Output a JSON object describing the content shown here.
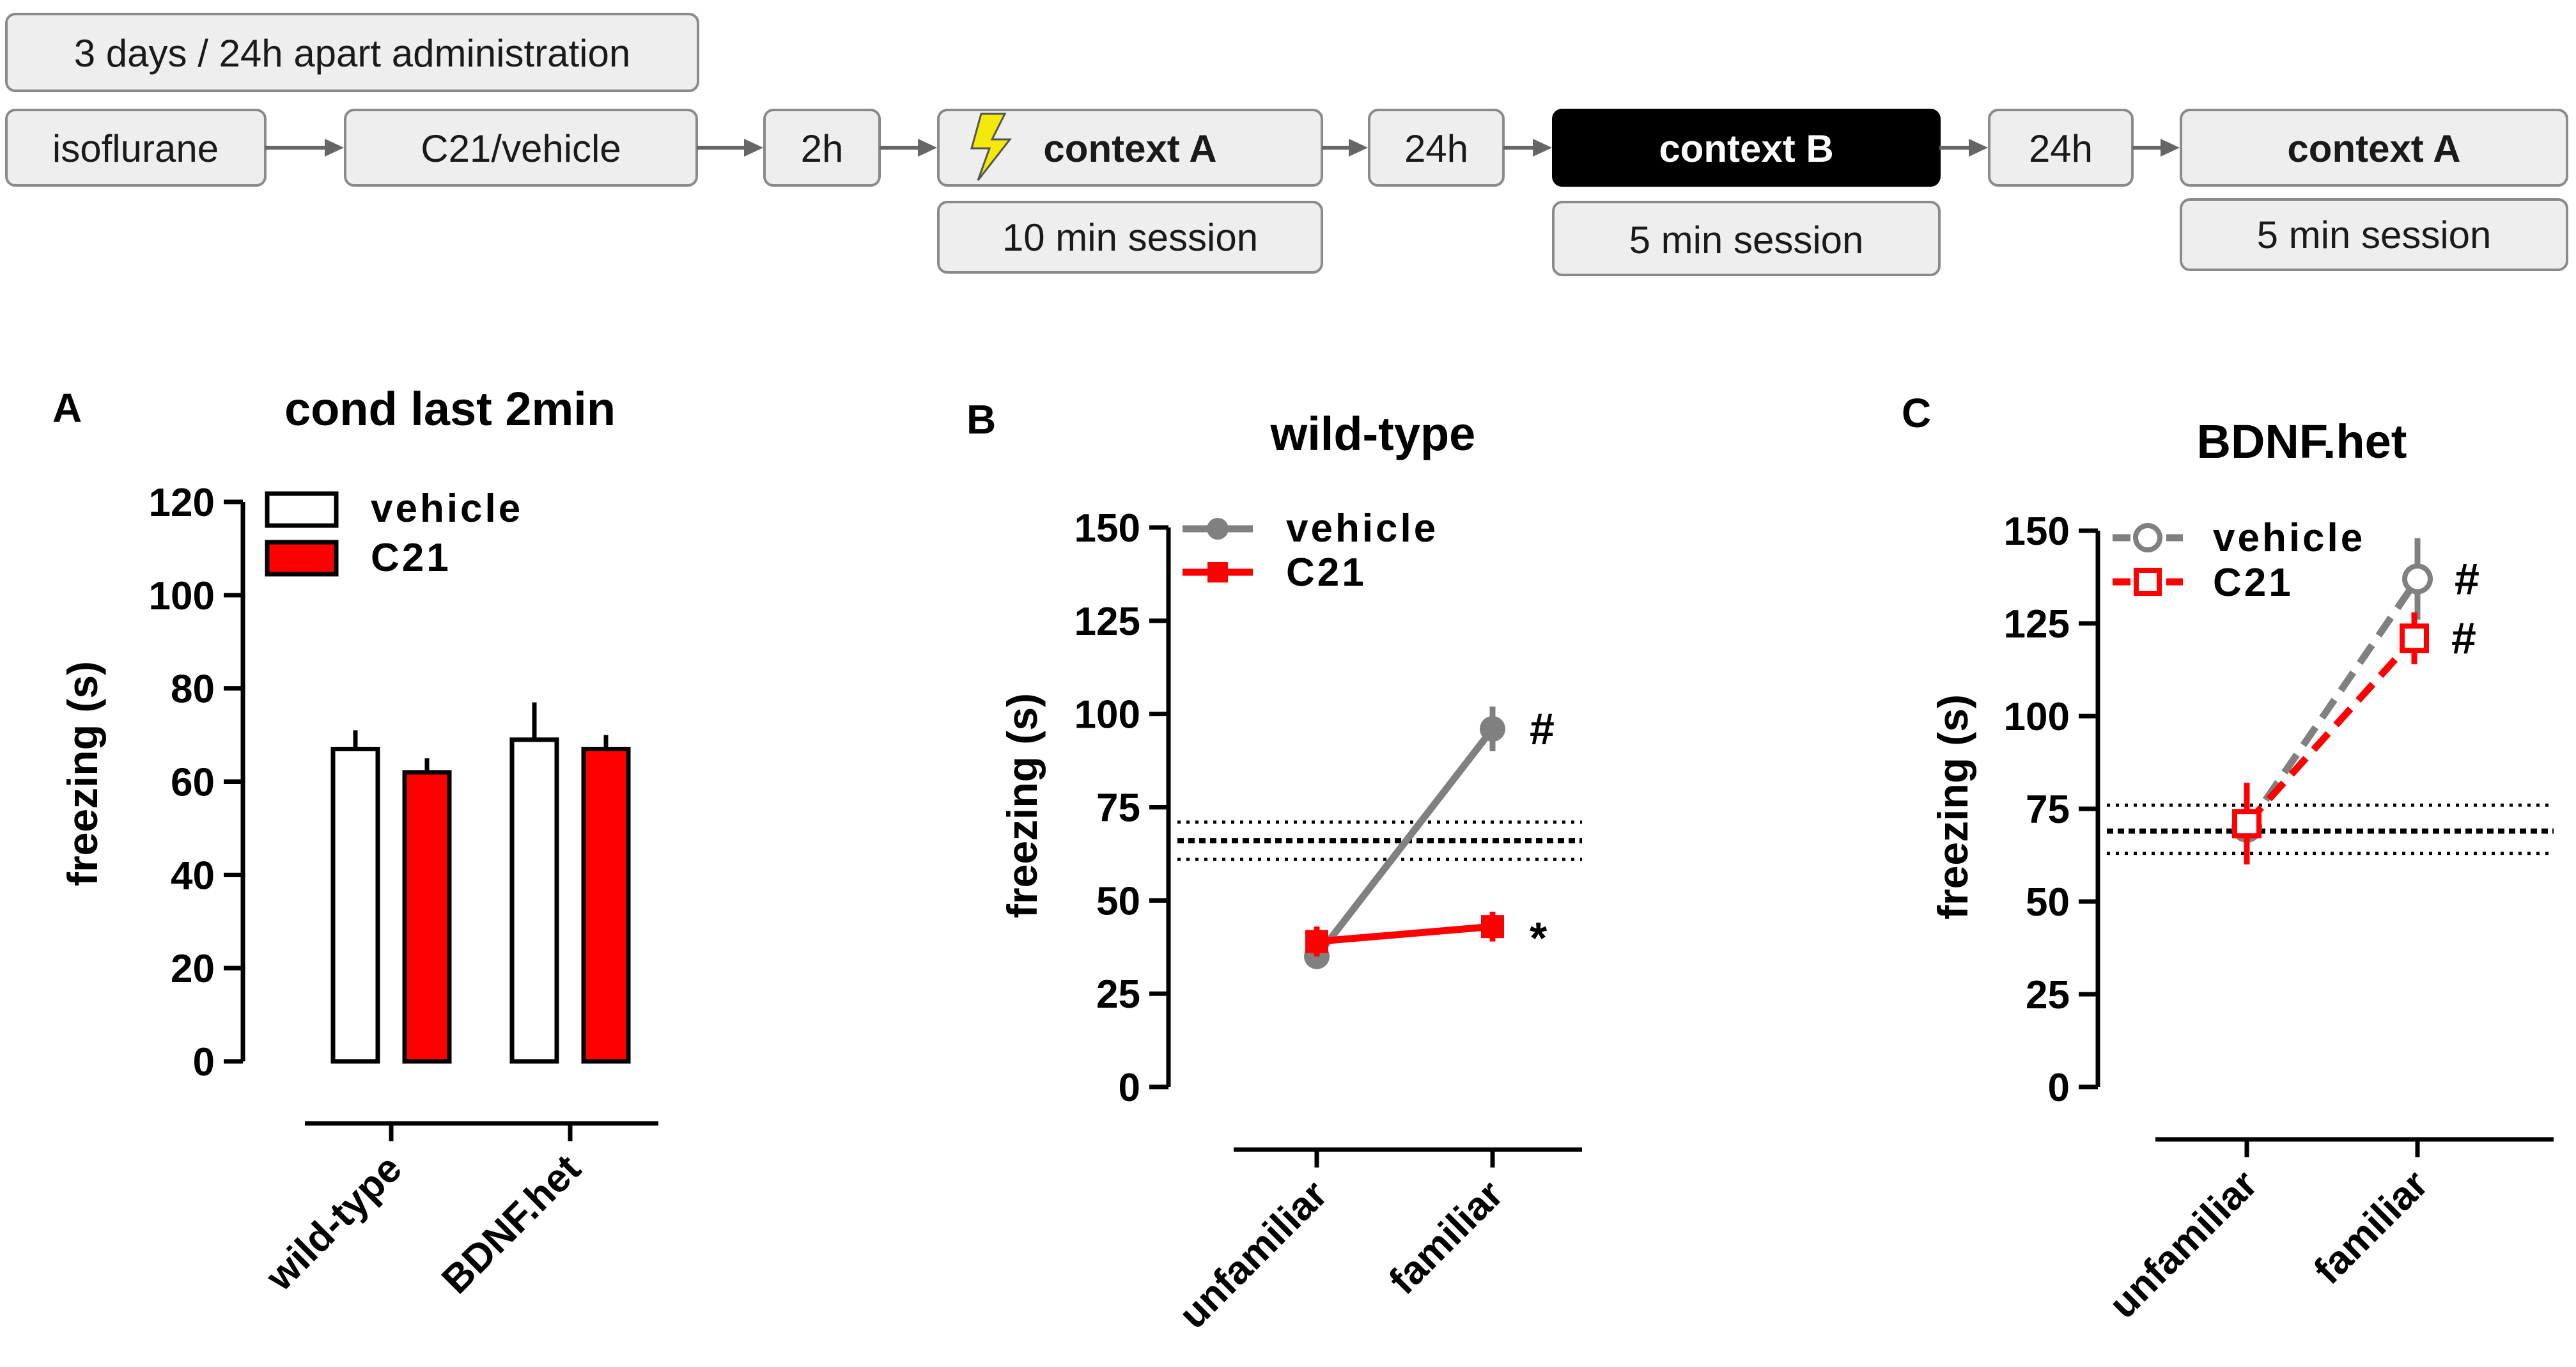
{
  "protocol": {
    "repeat_label": "3 days / 24h apart administration",
    "steps": [
      {
        "label": "isoflurane"
      },
      {
        "label": "C21/vehicle"
      },
      {
        "label": "2h"
      },
      {
        "label": "context A",
        "session": "10 min session"
      },
      {
        "label": "24h"
      },
      {
        "label": "context B",
        "session": "5 min session"
      },
      {
        "label": "24h"
      },
      {
        "label": "context A",
        "session": "5 min session"
      }
    ],
    "shock_icon": "lightning-bolt-icon"
  },
  "colors": {
    "vehicle_bar": "#ffffff",
    "c21": "#ff0000",
    "vehicle_line": "#808080",
    "context_b_fill": "#000000",
    "box_fill": "#eeeeee",
    "shock": "#f5e90a"
  },
  "chart_data": [
    {
      "panel": "A",
      "type": "bar",
      "title": "cond last 2min",
      "ylabel": "freezing (s)",
      "xlabel": "",
      "ylim": [
        0,
        120
      ],
      "yticks": [
        "0",
        "20",
        "40",
        "60",
        "80",
        "100",
        "120"
      ],
      "categories": [
        "wild-type",
        "BDNF.het"
      ],
      "series": [
        {
          "name": "vehicle",
          "values": [
            67,
            69
          ],
          "errors": [
            4,
            8
          ]
        },
        {
          "name": "C21",
          "values": [
            62,
            67
          ],
          "errors": [
            3,
            3
          ]
        }
      ],
      "legend_position": "top-right"
    },
    {
      "panel": "B",
      "type": "line",
      "title": "wild-type",
      "ylabel": "freezing (s)",
      "xlabel": "",
      "ylim": [
        0,
        150
      ],
      "yticks": [
        "0",
        "25",
        "50",
        "75",
        "100",
        "125",
        "150"
      ],
      "categories": [
        "unfamiliar",
        "familiar"
      ],
      "series": [
        {
          "name": "vehicle",
          "values": [
            35,
            96
          ],
          "errors": [
            3,
            6
          ],
          "marks": [
            "",
            "#"
          ]
        },
        {
          "name": "C21",
          "values": [
            39,
            43
          ],
          "errors": [
            4,
            4
          ],
          "marks": [
            "",
            "*"
          ]
        }
      ],
      "baseline_band": {
        "mean": 66,
        "lower": 61,
        "upper": 71
      },
      "legend_position": "top-left"
    },
    {
      "panel": "C",
      "type": "line",
      "title": "BDNF.het",
      "ylabel": "freezing (s)",
      "xlabel": "",
      "ylim": [
        0,
        150
      ],
      "yticks": [
        "0",
        "25",
        "50",
        "75",
        "100",
        "125",
        "150"
      ],
      "categories": [
        "unfamiliar",
        "familiar"
      ],
      "series": [
        {
          "name": "vehicle",
          "values": [
            70,
            137
          ],
          "errors": [
            5,
            11
          ],
          "marks": [
            "",
            "#"
          ]
        },
        {
          "name": "C21",
          "values": [
            71,
            121
          ],
          "errors": [
            11,
            7
          ],
          "marks": [
            "",
            "#"
          ]
        }
      ],
      "baseline_band": {
        "mean": 69,
        "lower": 63,
        "upper": 76
      },
      "legend_position": "top-left"
    }
  ]
}
